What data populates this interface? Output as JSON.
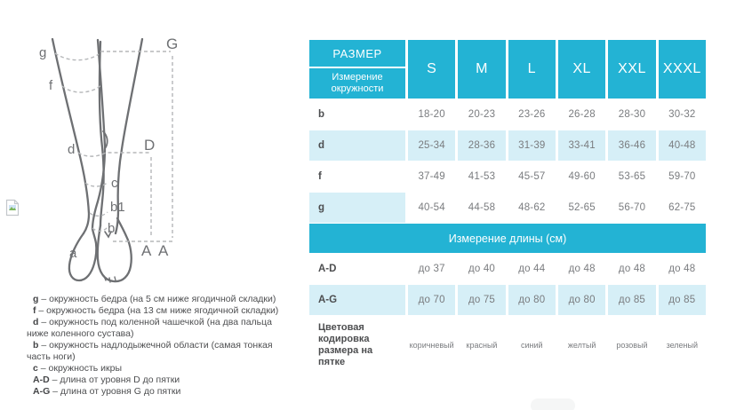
{
  "colors": {
    "accent_cyan": "#23b3d4",
    "light_blue": "#d6eff7",
    "dark_text": "#4c4d4f",
    "gray_text": "#7a7c7f",
    "leg_stroke": "#6e7073",
    "dash_stroke": "#b5b7b9"
  },
  "diagram": {
    "labels": {
      "g": "g",
      "f": "f",
      "d": "d",
      "c": "c",
      "b1": "b1",
      "b": "b",
      "a": "a",
      "G": "G",
      "D": "D",
      "A_left": "A",
      "A_right": "A"
    }
  },
  "legend": {
    "items": [
      {
        "term": "g",
        "text": "– окружность бедра (на 5 см ниже ягодичной складки)"
      },
      {
        "term": "f",
        "text": "– окружность бедра (на 13 см ниже ягодичной складки)"
      },
      {
        "term": "d",
        "text": "– окружность под коленной чашечкой (на два пальца ниже коленного сустава)"
      },
      {
        "term": "b",
        "text": "– окружность надлодыжечной области (самая тонкая часть ноги)"
      },
      {
        "term": "c",
        "text": "– окружность икры"
      },
      {
        "term": "A-D",
        "text": "– длина от уровня D до пятки"
      },
      {
        "term": "A-G",
        "text": "– длина от уровня G до пятки"
      }
    ]
  },
  "size_table": {
    "corner_top": "РАЗМЕР",
    "corner_bottom": "Измерение окружности",
    "sizes": [
      "S",
      "M",
      "L",
      "XL",
      "XXL",
      "XXXL"
    ],
    "circumference_rows": [
      {
        "label": "b",
        "label_highlight": false,
        "highlight": false,
        "values": [
          "18-20",
          "20-23",
          "23-26",
          "26-28",
          "28-30",
          "30-32"
        ]
      },
      {
        "label": "d",
        "label_highlight": true,
        "highlight": true,
        "values": [
          "25-34",
          "28-36",
          "31-39",
          "33-41",
          "36-46",
          "40-48"
        ]
      },
      {
        "label": "f",
        "label_highlight": false,
        "highlight": false,
        "values": [
          "37-49",
          "41-53",
          "45-57",
          "49-60",
          "53-65",
          "59-70"
        ]
      },
      {
        "label": "g",
        "label_highlight": true,
        "highlight": false,
        "values": [
          "40-54",
          "44-58",
          "48-62",
          "52-65",
          "56-70",
          "62-75"
        ]
      }
    ],
    "length_section_title": "Измерение длины (см)",
    "length_rows": [
      {
        "label": "A-D",
        "label_highlight": false,
        "highlight": false,
        "values": [
          "до 37",
          "до 40",
          "до 44",
          "до 48",
          "до 48",
          "до 48"
        ]
      },
      {
        "label": "A-G",
        "label_highlight": true,
        "highlight": true,
        "values": [
          "до 70",
          "до 75",
          "до 80",
          "до 80",
          "до 85",
          "до 85"
        ]
      }
    ],
    "heel_color_row": {
      "label": "Цветовая кодировка размера на пятке",
      "values": [
        "коричневый",
        "красный",
        "синий",
        "желтый",
        "розовый",
        "зеленый"
      ]
    }
  }
}
